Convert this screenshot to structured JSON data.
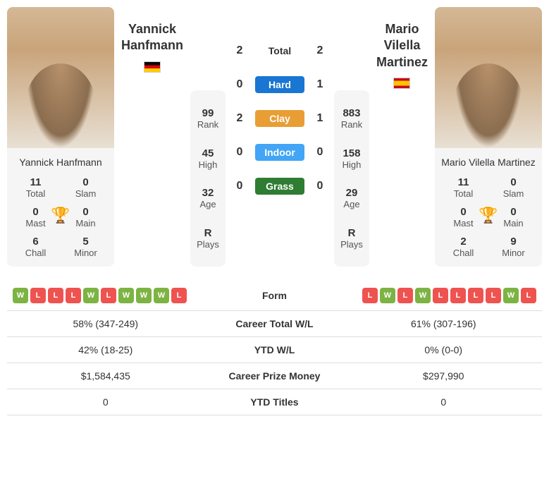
{
  "player1": {
    "name_short": "Yannick Hanfmann",
    "first": "Yannick",
    "last": "Hanfmann",
    "flag": "de",
    "rank": "99",
    "high": "45",
    "age": "32",
    "plays": "R",
    "titles": {
      "total": "11",
      "slam": "0",
      "mast": "0",
      "main": "0",
      "chall": "6",
      "minor": "5"
    },
    "form": [
      "W",
      "L",
      "L",
      "L",
      "W",
      "L",
      "W",
      "W",
      "W",
      "L"
    ],
    "career_wl": "58% (347-249)",
    "ytd_wl": "42% (18-25)",
    "prize": "$1,584,435",
    "ytd_titles": "0"
  },
  "player2": {
    "name_short": "Mario Vilella Martinez",
    "first": "Mario Vilella",
    "last": "Martinez",
    "flag": "es",
    "rank": "883",
    "high": "158",
    "age": "29",
    "plays": "R",
    "titles": {
      "total": "11",
      "slam": "0",
      "mast": "0",
      "main": "0",
      "chall": "2",
      "minor": "9"
    },
    "form": [
      "L",
      "W",
      "L",
      "W",
      "L",
      "L",
      "L",
      "L",
      "W",
      "L"
    ],
    "career_wl": "61% (307-196)",
    "ytd_wl": "0% (0-0)",
    "prize": "$297,990",
    "ytd_titles": "0"
  },
  "h2h": {
    "total": {
      "p1": "2",
      "p2": "2",
      "label": "Total"
    },
    "surfaces": [
      {
        "label": "Hard",
        "p1": "0",
        "p2": "1",
        "cls": "pill-hard"
      },
      {
        "label": "Clay",
        "p1": "2",
        "p2": "1",
        "cls": "pill-clay"
      },
      {
        "label": "Indoor",
        "p1": "0",
        "p2": "0",
        "cls": "pill-indoor"
      },
      {
        "label": "Grass",
        "p1": "0",
        "p2": "0",
        "cls": "pill-grass"
      }
    ]
  },
  "labels": {
    "rank": "Rank",
    "high": "High",
    "age": "Age",
    "plays": "Plays",
    "total": "Total",
    "slam": "Slam",
    "mast": "Mast",
    "main": "Main",
    "chall": "Chall",
    "minor": "Minor",
    "form": "Form",
    "career_wl": "Career Total W/L",
    "ytd_wl": "YTD W/L",
    "prize": "Career Prize Money",
    "ytd_titles": "YTD Titles"
  },
  "colors": {
    "win": "#7cb342",
    "loss": "#ef5350",
    "hard": "#1976d2",
    "clay": "#e89e35",
    "indoor": "#42a5f5",
    "grass": "#2e7d32",
    "trophy": "#2196f3"
  }
}
